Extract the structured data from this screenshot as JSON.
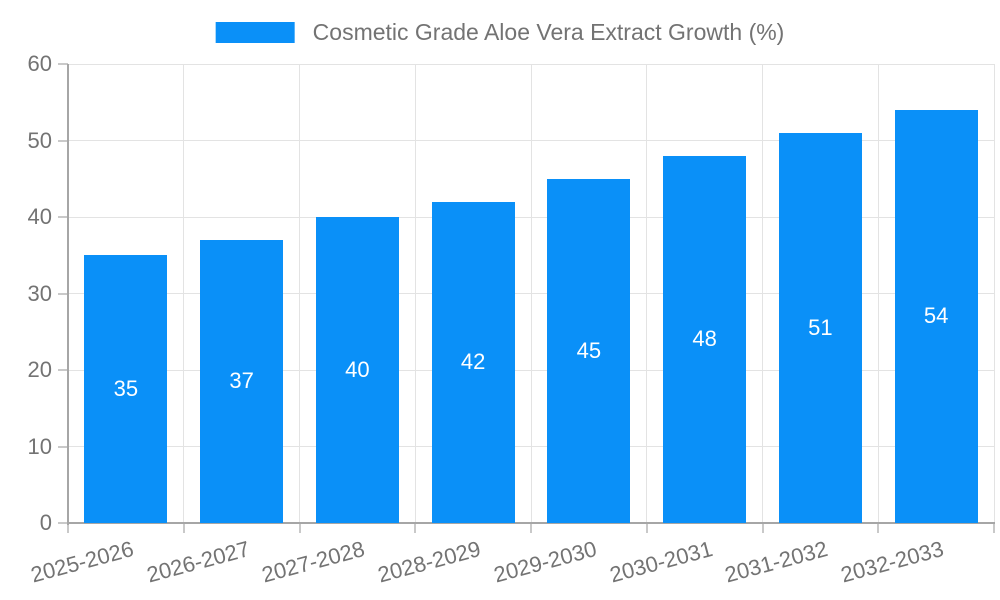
{
  "legend": {
    "label": "Cosmetic Grade Aloe Vera Extract Growth (%)"
  },
  "chart_data": {
    "type": "bar",
    "title": "Cosmetic Grade Aloe Vera Extract Growth (%)",
    "categories": [
      "2025-2026",
      "2026-2027",
      "2027-2028",
      "2028-2029",
      "2029-2030",
      "2030-2031",
      "2031-2032",
      "2032-2033"
    ],
    "series": [
      {
        "name": "Cosmetic Grade Aloe Vera Extract Growth (%)",
        "values": [
          35,
          37,
          40,
          42,
          45,
          48,
          51,
          54
        ]
      }
    ],
    "value_labels": [
      "35",
      "37",
      "40",
      "42",
      "45",
      "48",
      "51",
      "54"
    ],
    "xlabel": "",
    "ylabel": "",
    "ylim": [
      0,
      60
    ],
    "yticks": [
      0,
      10,
      20,
      30,
      40,
      50,
      60
    ],
    "grid": true,
    "legend_position": "top",
    "value_label_position": "inside-center",
    "x_label_rotation_deg": -15
  },
  "colors": {
    "bar": "#0A90F8",
    "value_label": "#FFFFFF",
    "axis_text": "#737373",
    "legend_text": "#737373",
    "gridline": "#E3E3E3",
    "axis_line": "#A6A6A6",
    "tick": "#C9C9C9",
    "background": "#FFFFFF"
  }
}
